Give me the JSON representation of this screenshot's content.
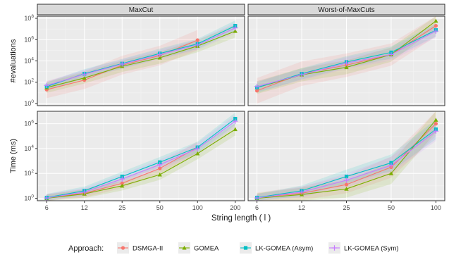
{
  "figure": {
    "xlabel": "String length ( l )",
    "legend_title": "Approach:"
  },
  "colors": {
    "panel_bg": "#ebebeb",
    "grid_major": "#ffffff",
    "strip_bg": "#d9d9d9"
  },
  "chart_data": [
    {
      "id": "evals-maxcut",
      "type": "line",
      "title": "MaxCut",
      "ylabel": "#evaluations",
      "yscale": "log",
      "ylim_log10": [
        -0.2,
        8.2
      ],
      "y_ticks": [
        {
          "exp": 0,
          "label": "10"
        },
        {
          "exp": 2,
          "label": "10"
        },
        {
          "exp": 4,
          "label": "10"
        },
        {
          "exp": 6,
          "label": "10"
        },
        {
          "exp": 8,
          "label": "10"
        }
      ],
      "x_axis": "categorical",
      "categories": [
        "6",
        "12",
        "25",
        "50",
        "100",
        "200"
      ],
      "series": [
        {
          "name": "DSMGA-II",
          "color": "#f8766d",
          "marker": "circle",
          "log10_values": [
            1.3,
            2.2,
            3.6,
            4.5,
            5.95,
            null
          ],
          "log10_band": [
            0.8,
            1.0
          ]
        },
        {
          "name": "GOMEA",
          "color": "#7cae00",
          "marker": "triangle",
          "log10_values": [
            1.5,
            2.4,
            3.5,
            4.3,
            5.4,
            6.8
          ],
          "log10_band": [
            0.5,
            0.6
          ]
        },
        {
          "name": "LK-GOMEA (Asym)",
          "color": "#00bfc4",
          "marker": "square",
          "log10_values": [
            1.6,
            2.8,
            3.75,
            4.7,
            5.6,
            7.3
          ],
          "log10_band": [
            0.4,
            0.5
          ]
        },
        {
          "name": "LK-GOMEA (Sym)",
          "color": "#c77cff",
          "marker": "plus",
          "log10_values": [
            1.7,
            2.75,
            3.7,
            4.6,
            5.5,
            7.1
          ],
          "log10_band": [
            0.4,
            0.5
          ]
        }
      ]
    },
    {
      "id": "evals-worst",
      "type": "line",
      "title": "Worst-of-MaxCuts",
      "yscale": "log",
      "ylim_log10": [
        -0.2,
        8.2
      ],
      "y_ticks": [
        {
          "exp": 0,
          "label": "10"
        },
        {
          "exp": 2,
          "label": "10"
        },
        {
          "exp": 4,
          "label": "10"
        },
        {
          "exp": 6,
          "label": "10"
        },
        {
          "exp": 8,
          "label": "10"
        }
      ],
      "x_axis": "categorical",
      "categories": [
        "6",
        "12",
        "25",
        "50",
        "100"
      ],
      "series": [
        {
          "name": "DSMGA-II",
          "color": "#f8766d",
          "marker": "circle",
          "log10_values": [
            1.2,
            2.8,
            3.6,
            4.6,
            7.3
          ],
          "log10_band": [
            1.2,
            1.0
          ]
        },
        {
          "name": "GOMEA",
          "color": "#7cae00",
          "marker": "triangle",
          "log10_values": [
            1.5,
            2.7,
            3.4,
            4.6,
            7.75
          ],
          "log10_band": [
            0.6,
            0.7
          ]
        },
        {
          "name": "LK-GOMEA (Asym)",
          "color": "#00bfc4",
          "marker": "square",
          "log10_values": [
            1.5,
            2.8,
            3.9,
            4.8,
            6.9
          ],
          "log10_band": [
            0.5,
            0.6
          ]
        },
        {
          "name": "LK-GOMEA (Sym)",
          "color": "#c77cff",
          "marker": "plus",
          "log10_values": [
            1.6,
            2.7,
            3.8,
            4.6,
            6.8
          ],
          "log10_band": [
            0.5,
            0.6
          ]
        }
      ]
    },
    {
      "id": "time-maxcut",
      "type": "line",
      "ylabel": "Time (ms)",
      "yscale": "log",
      "ylim_log10": [
        -0.2,
        7.0
      ],
      "y_ticks": [
        {
          "exp": 0,
          "label": "10"
        },
        {
          "exp": 2,
          "label": "10"
        },
        {
          "exp": 4,
          "label": "10"
        },
        {
          "exp": 6,
          "label": "10"
        }
      ],
      "x_axis": "categorical",
      "categories": [
        "6",
        "12",
        "25",
        "50",
        "100",
        "200"
      ],
      "series": [
        {
          "name": "DSMGA-II",
          "color": "#f8766d",
          "marker": "circle",
          "log10_values": [
            0.02,
            0.4,
            1.2,
            2.4,
            4.1,
            null
          ],
          "log10_band": [
            0.3,
            0.5
          ]
        },
        {
          "name": "GOMEA",
          "color": "#7cae00",
          "marker": "triangle",
          "log10_values": [
            0.0,
            0.35,
            1.0,
            1.9,
            3.6,
            5.55
          ],
          "log10_band": [
            0.3,
            0.5
          ]
        },
        {
          "name": "LK-GOMEA (Asym)",
          "color": "#00bfc4",
          "marker": "square",
          "log10_values": [
            0.05,
            0.6,
            1.75,
            2.9,
            4.1,
            6.4
          ],
          "log10_band": [
            0.3,
            0.5
          ]
        },
        {
          "name": "LK-GOMEA (Sym)",
          "color": "#c77cff",
          "marker": "plus",
          "log10_values": [
            0.02,
            0.5,
            1.55,
            2.7,
            4.0,
            6.2
          ],
          "log10_band": [
            0.3,
            0.5
          ]
        }
      ]
    },
    {
      "id": "time-worst",
      "type": "line",
      "yscale": "log",
      "ylim_log10": [
        -0.2,
        7.0
      ],
      "y_ticks": [
        {
          "exp": 0,
          "label": "10"
        },
        {
          "exp": 2,
          "label": "10"
        },
        {
          "exp": 4,
          "label": "10"
        },
        {
          "exp": 6,
          "label": "10"
        }
      ],
      "x_axis": "categorical",
      "categories": [
        "6",
        "12",
        "25",
        "50",
        "100"
      ],
      "series": [
        {
          "name": "DSMGA-II",
          "color": "#f8766d",
          "marker": "circle",
          "log10_values": [
            0.05,
            0.4,
            1.1,
            2.5,
            6.0
          ],
          "log10_band": [
            0.4,
            1.0
          ]
        },
        {
          "name": "GOMEA",
          "color": "#7cae00",
          "marker": "triangle",
          "log10_values": [
            0.0,
            0.3,
            0.75,
            2.0,
            6.3
          ],
          "log10_band": [
            0.4,
            1.0
          ]
        },
        {
          "name": "LK-GOMEA (Asym)",
          "color": "#00bfc4",
          "marker": "square",
          "log10_values": [
            0.05,
            0.6,
            1.75,
            2.85,
            5.55
          ],
          "log10_band": [
            0.3,
            0.8
          ]
        },
        {
          "name": "LK-GOMEA (Sym)",
          "color": "#c77cff",
          "marker": "plus",
          "log10_values": [
            0.02,
            0.5,
            1.45,
            2.65,
            5.4
          ],
          "log10_band": [
            0.3,
            0.8
          ]
        }
      ]
    }
  ],
  "legend": [
    {
      "name": "DSMGA-II",
      "color": "#f8766d",
      "marker": "circle"
    },
    {
      "name": "GOMEA",
      "color": "#7cae00",
      "marker": "triangle"
    },
    {
      "name": "LK-GOMEA (Asym)",
      "color": "#00bfc4",
      "marker": "square"
    },
    {
      "name": "LK-GOMEA (Sym)",
      "color": "#c77cff",
      "marker": "plus"
    }
  ]
}
